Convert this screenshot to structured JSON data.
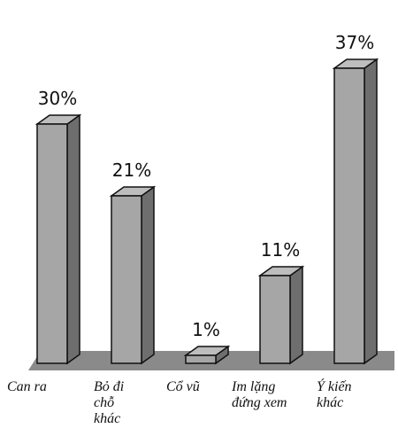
{
  "chart_data": {
    "type": "bar",
    "title": "",
    "xlabel": "",
    "ylabel": "",
    "categories": [
      [
        "Can ra"
      ],
      [
        "Bỏ đi",
        "chỗ",
        "khác"
      ],
      [
        "Cổ vũ"
      ],
      [
        "Im lặng",
        "đứng xem"
      ],
      [
        "Ý kiến",
        "khác"
      ]
    ],
    "values": [
      30,
      21,
      1,
      11,
      37
    ],
    "value_labels": [
      "30%",
      "21%",
      "1%",
      "11%",
      "37%"
    ],
    "ylim": [
      0,
      40
    ],
    "style": "3d-column",
    "colors": {
      "bar_front": "#a6a6a6",
      "bar_side": "#6e6e6e",
      "bar_top": "#bdbdbd",
      "floor": "#8a8a8a",
      "outline": "#111111"
    }
  }
}
